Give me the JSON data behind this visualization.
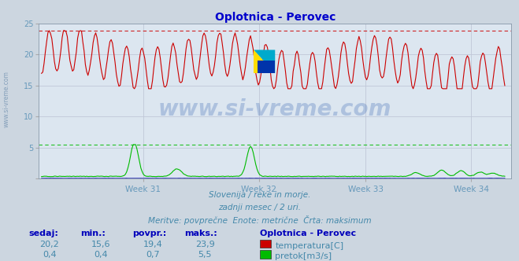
{
  "title": "Oplotnica - Perovec",
  "bg_color": "#ccd6e0",
  "plot_bg_color": "#dce6f0",
  "grid_color": "#c0c8d8",
  "title_color": "#0000cc",
  "text_color": "#4488aa",
  "axis_label_color": "#6699bb",
  "xlabel_weeks": [
    "Week 31",
    "Week 32",
    "Week 33",
    "Week 34"
  ],
  "ylim": [
    0,
    25
  ],
  "yticks": [
    0,
    5,
    10,
    15,
    20,
    25
  ],
  "ytick_labels": [
    "",
    "5",
    "10",
    "15",
    "20",
    "25"
  ],
  "temp_color": "#cc0000",
  "flow_color": "#00bb00",
  "level_color": "#3333bb",
  "dashed_max_temp": 23.9,
  "dashed_max_flow": 5.5,
  "watermark_text": "www.si-vreme.com",
  "watermark_color": "#2255aa",
  "watermark_alpha": 0.25,
  "subtitle1": "Slovenija / reke in morje.",
  "subtitle2": "zadnji mesec / 2 uri.",
  "subtitle3": "Meritve: povprečne  Enote: metrične  Črta: maksimum",
  "legend_title": "Oplotnica - Perovec",
  "legend_items": [
    "temperatura[C]",
    "pretok[m3/s]"
  ],
  "legend_colors": [
    "#cc0000",
    "#00bb00"
  ],
  "table_headers": [
    "sedaj:",
    "min.:",
    "povpr.:",
    "maks.:"
  ],
  "table_row1": [
    "20,2",
    "15,6",
    "19,4",
    "23,9"
  ],
  "table_row2": [
    "0,4",
    "0,4",
    "0,7",
    "5,5"
  ],
  "n_points": 360,
  "left_watermark": "www.si-vreme.com"
}
